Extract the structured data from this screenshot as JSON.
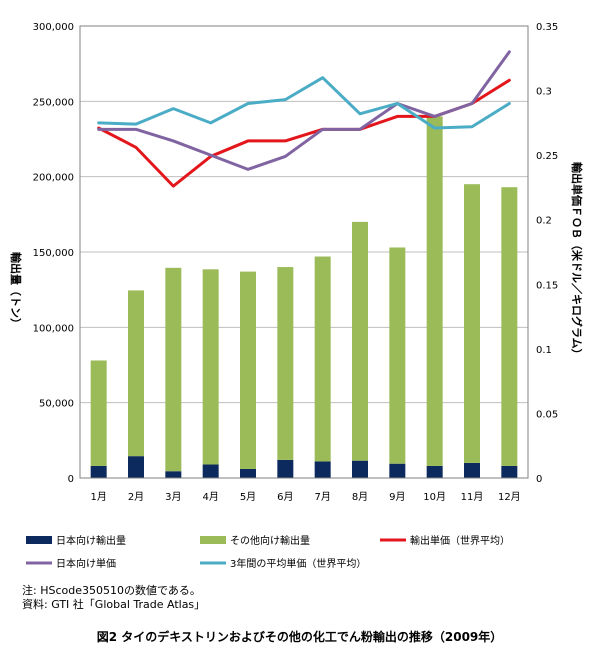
{
  "chart_data": {
    "type": "bar+line",
    "categories": [
      "1月",
      "2月",
      "3月",
      "4月",
      "5月",
      "6月",
      "7月",
      "8月",
      "9月",
      "10月",
      "11月",
      "12月"
    ],
    "bar_series": [
      {
        "name": "日本向け輸出量",
        "color": "#0d2a5e",
        "values": [
          8000,
          14500,
          4500,
          9000,
          6000,
          12000,
          11000,
          11500,
          9500,
          8000,
          10000,
          8000
        ]
      },
      {
        "name": "その他向け輸出量",
        "color": "#9bbb59",
        "values": [
          70000,
          110000,
          135000,
          129500,
          131000,
          128000,
          136000,
          158500,
          143500,
          232000,
          185000,
          185000
        ]
      }
    ],
    "line_series": [
      {
        "name": "輸出単価（世界平均）",
        "color": "#e3161c",
        "values": [
          0.271,
          0.256,
          0.226,
          0.249,
          0.261,
          0.261,
          0.27,
          0.27,
          0.28,
          0.28,
          0.29,
          0.308
        ]
      },
      {
        "name": "日本向け単価",
        "color": "#8064a2",
        "values": [
          0.27,
          0.27,
          0.261,
          0.25,
          0.239,
          0.249,
          0.27,
          0.27,
          0.29,
          0.28,
          0.29,
          0.33
        ]
      },
      {
        "name": "3年間の平均単価（世界平均）",
        "color": "#4bacc6",
        "values": [
          0.275,
          0.274,
          0.286,
          0.275,
          0.29,
          0.293,
          0.31,
          0.282,
          0.29,
          0.271,
          0.272,
          0.29
        ]
      }
    ],
    "y_left": {
      "label": "輸出量（トン）",
      "min": 0,
      "max": 300000,
      "ticks": [
        "0",
        "50,000",
        "100,000",
        "150,000",
        "200,000",
        "250,000",
        "300,000"
      ]
    },
    "y_right": {
      "label": "輸出単価ＦＯＢ（米ドル／キログラム）",
      "min": 0,
      "max": 0.35,
      "ticks": [
        "0",
        "0.05",
        "0.1",
        "0.15",
        "0.2",
        "0.25",
        "0.3",
        "0.35"
      ]
    },
    "grid": "horizontal",
    "legend": "bottom"
  },
  "notes": [
    "注: HScode350510の数値である。",
    "資料: GTI 社「Global Trade Atlas」"
  ],
  "caption": "図2 タイのデキストリンおよびその他の化工でん粉輸出の推移（2009年）"
}
